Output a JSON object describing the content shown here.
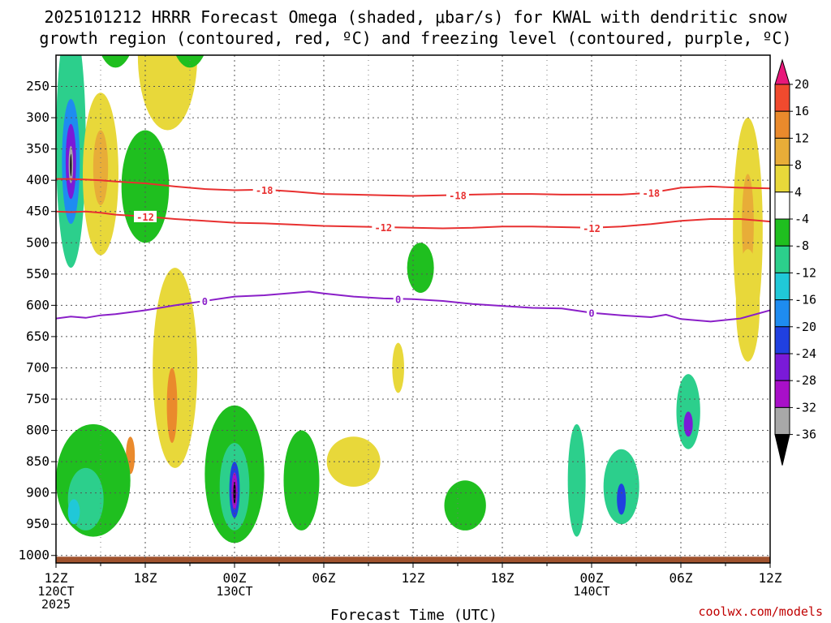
{
  "chart_data": {
    "type": "heatmap",
    "title_line1": "2025101212 HRRR Forecast Omega (shaded, μbar/s) for KWAL with dendritic snow",
    "title_line2": "growth region (contoured, red, ºC) and freezing level (contoured, purple, ºC)",
    "xlabel": "Forecast Time (UTC)",
    "credit": "coolwx.com/models",
    "x_hours": [
      0,
      6,
      12,
      18,
      24,
      30,
      36,
      42,
      48
    ],
    "x_tick_labels": [
      "12Z",
      "18Z",
      "00Z",
      "06Z",
      "12Z",
      "18Z",
      "00Z",
      "06Z",
      "12Z"
    ],
    "x_date_labels": [
      {
        "hour": 0,
        "text": "120CT"
      },
      {
        "hour": 0,
        "text": "2025",
        "row": 2
      },
      {
        "hour": 12,
        "text": "130CT"
      },
      {
        "hour": 36,
        "text": "140CT"
      }
    ],
    "y_levels": [
      250,
      300,
      350,
      400,
      450,
      500,
      550,
      600,
      650,
      700,
      750,
      800,
      850,
      900,
      950,
      1000
    ],
    "y_tick_labels": [
      "250",
      "300",
      "350",
      "400",
      "450",
      "500",
      "550",
      "600",
      "650",
      "700",
      "750",
      "800",
      "850",
      "900",
      "950",
      "1000"
    ],
    "ylim": [
      200,
      1012
    ],
    "xlim": [
      0,
      48
    ],
    "colorbar": {
      "labels": [
        "20",
        "16",
        "12",
        "8",
        "4",
        "-4",
        "-8",
        "-12",
        "-16",
        "-20",
        "-24",
        "-28",
        "-32",
        "-36"
      ],
      "bins": [
        {
          "low": 20,
          "high": 24,
          "color": "#e8187a"
        },
        {
          "low": 16,
          "high": 20,
          "color": "#f04a2e"
        },
        {
          "low": 12,
          "high": 16,
          "color": "#ea8a2c"
        },
        {
          "low": 8,
          "high": 12,
          "color": "#e8ad38"
        },
        {
          "low": 4,
          "high": 8,
          "color": "#e8d83a"
        },
        {
          "low": -4,
          "high": 4,
          "color": "#ffffff"
        },
        {
          "low": -8,
          "high": -4,
          "color": "#1fbf1f"
        },
        {
          "low": -12,
          "high": -8,
          "color": "#2ccf8c"
        },
        {
          "low": -16,
          "high": -12,
          "color": "#20c8d8"
        },
        {
          "low": -20,
          "high": -16,
          "color": "#1e8cf0"
        },
        {
          "low": -24,
          "high": -20,
          "color": "#2040e0"
        },
        {
          "low": -28,
          "high": -24,
          "color": "#7a1ad8"
        },
        {
          "low": -32,
          "high": -28,
          "color": "#a80fc8"
        },
        {
          "low": -36,
          "high": -32,
          "color": "#a8a8a8"
        },
        {
          "low": -40,
          "high": -36,
          "color": "#000000"
        }
      ]
    },
    "contours": [
      {
        "name": "contour-minus-18",
        "value": -18,
        "label": "-18",
        "color": "#e83030",
        "points": [
          [
            0,
            398
          ],
          [
            1,
            398
          ],
          [
            2,
            399
          ],
          [
            3,
            400
          ],
          [
            4,
            402
          ],
          [
            6,
            405
          ],
          [
            8,
            410
          ],
          [
            10,
            414
          ],
          [
            12,
            416
          ],
          [
            14,
            415
          ],
          [
            16,
            418
          ],
          [
            18,
            422
          ],
          [
            20,
            423
          ],
          [
            22,
            424
          ],
          [
            24,
            425
          ],
          [
            26,
            424
          ],
          [
            28,
            423
          ],
          [
            30,
            422
          ],
          [
            32,
            422
          ],
          [
            34,
            423
          ],
          [
            36,
            423
          ],
          [
            38,
            423
          ],
          [
            40,
            420
          ],
          [
            42,
            412
          ],
          [
            44,
            410
          ],
          [
            46,
            412
          ],
          [
            48,
            413
          ]
        ],
        "label_hours": [
          14,
          27,
          40
        ]
      },
      {
        "name": "contour-minus-12",
        "value": -12,
        "label": "-12",
        "color": "#e83030",
        "points": [
          [
            0,
            450
          ],
          [
            1,
            451
          ],
          [
            2,
            450
          ],
          [
            3,
            452
          ],
          [
            4,
            455
          ],
          [
            6,
            458
          ],
          [
            8,
            462
          ],
          [
            10,
            465
          ],
          [
            12,
            468
          ],
          [
            14,
            469
          ],
          [
            16,
            471
          ],
          [
            18,
            473
          ],
          [
            20,
            474
          ],
          [
            22,
            475
          ],
          [
            24,
            476
          ],
          [
            26,
            477
          ],
          [
            28,
            476
          ],
          [
            30,
            474
          ],
          [
            32,
            474
          ],
          [
            34,
            475
          ],
          [
            36,
            476
          ],
          [
            38,
            474
          ],
          [
            40,
            470
          ],
          [
            42,
            465
          ],
          [
            44,
            462
          ],
          [
            46,
            462
          ],
          [
            48,
            466
          ]
        ],
        "label_hours": [
          6,
          22,
          36
        ]
      },
      {
        "name": "contour-zero",
        "value": 0,
        "label": "0",
        "color": "#8a1fc8",
        "points": [
          [
            0,
            621
          ],
          [
            1,
            618
          ],
          [
            2,
            620
          ],
          [
            3,
            616
          ],
          [
            4,
            614
          ],
          [
            6,
            608
          ],
          [
            8,
            600
          ],
          [
            10,
            593
          ],
          [
            12,
            586
          ],
          [
            14,
            584
          ],
          [
            15,
            582
          ],
          [
            16,
            580
          ],
          [
            17,
            578
          ],
          [
            18,
            581
          ],
          [
            20,
            586
          ],
          [
            22,
            589
          ],
          [
            24,
            590
          ],
          [
            26,
            593
          ],
          [
            28,
            598
          ],
          [
            30,
            601
          ],
          [
            32,
            604
          ],
          [
            34,
            605
          ],
          [
            36,
            612
          ],
          [
            38,
            616
          ],
          [
            40,
            619
          ],
          [
            41,
            615
          ],
          [
            42,
            622
          ],
          [
            44,
            626
          ],
          [
            46,
            621
          ],
          [
            48,
            608
          ]
        ],
        "label_hours": [
          10,
          23,
          36
        ]
      }
    ],
    "omega_regions": [
      {
        "x": 1.0,
        "p": 340,
        "rx": 1.0,
        "rp": 200,
        "value": -10
      },
      {
        "x": 1.0,
        "p": 370,
        "rx": 0.6,
        "rp": 100,
        "value": -18
      },
      {
        "x": 1.0,
        "p": 370,
        "rx": 0.35,
        "rp": 60,
        "value": -26
      },
      {
        "x": 1.0,
        "p": 375,
        "rx": 0.15,
        "rp": 30,
        "value": -34
      },
      {
        "x": 1.0,
        "p": 376,
        "rx": 0.05,
        "rp": 18,
        "value": -38
      },
      {
        "x": 4.0,
        "p": 130,
        "rx": 1.5,
        "rp": 90,
        "value": -6
      },
      {
        "x": 3.0,
        "p": 390,
        "rx": 1.2,
        "rp": 130,
        "value": 6
      },
      {
        "x": 3.0,
        "p": 380,
        "rx": 0.5,
        "rp": 60,
        "value": 10
      },
      {
        "x": 6.0,
        "p": 410,
        "rx": 1.6,
        "rp": 90,
        "value": -6
      },
      {
        "x": 7.5,
        "p": 200,
        "rx": 2.0,
        "rp": 120,
        "value": 6
      },
      {
        "x": 9.0,
        "p": 130,
        "rx": 1.5,
        "rp": 90,
        "value": -6
      },
      {
        "x": 8.0,
        "p": 700,
        "rx": 1.5,
        "rp": 160,
        "value": 6
      },
      {
        "x": 5.0,
        "p": 840,
        "rx": 0.3,
        "rp": 30,
        "value": 14
      },
      {
        "x": 7.8,
        "p": 760,
        "rx": 0.35,
        "rp": 60,
        "value": 12
      },
      {
        "x": 2.5,
        "p": 880,
        "rx": 2.5,
        "rp": 90,
        "value": -8
      },
      {
        "x": 2.0,
        "p": 910,
        "rx": 1.2,
        "rp": 50,
        "value": -12
      },
      {
        "x": 1.2,
        "p": 930,
        "rx": 0.4,
        "rp": 20,
        "value": -16
      },
      {
        "x": 12.0,
        "p": 870,
        "rx": 2.0,
        "rp": 110,
        "value": -8
      },
      {
        "x": 12.0,
        "p": 890,
        "rx": 1.0,
        "rp": 70,
        "value": -12
      },
      {
        "x": 12.0,
        "p": 895,
        "rx": 0.35,
        "rp": 45,
        "value": -22
      },
      {
        "x": 12.0,
        "p": 897,
        "rx": 0.2,
        "rp": 30,
        "value": -30
      },
      {
        "x": 12.0,
        "p": 900,
        "rx": 0.08,
        "rp": 18,
        "value": -38
      },
      {
        "x": 16.5,
        "p": 880,
        "rx": 1.2,
        "rp": 80,
        "value": -6
      },
      {
        "x": 20.0,
        "p": 850,
        "rx": 1.8,
        "rp": 40,
        "value": 6
      },
      {
        "x": 24.5,
        "p": 540,
        "rx": 0.9,
        "rp": 40,
        "value": -8
      },
      {
        "x": 23.0,
        "p": 700,
        "rx": 0.4,
        "rp": 40,
        "value": 6
      },
      {
        "x": 27.5,
        "p": 920,
        "rx": 1.4,
        "rp": 40,
        "value": -6
      },
      {
        "x": 35.0,
        "p": 880,
        "rx": 0.6,
        "rp": 90,
        "value": -10
      },
      {
        "x": 38.0,
        "p": 890,
        "rx": 1.2,
        "rp": 60,
        "value": -10
      },
      {
        "x": 38.0,
        "p": 910,
        "rx": 0.3,
        "rp": 25,
        "value": -22
      },
      {
        "x": 42.5,
        "p": 770,
        "rx": 0.8,
        "rp": 60,
        "value": -12
      },
      {
        "x": 42.5,
        "p": 790,
        "rx": 0.3,
        "rp": 20,
        "value": -26
      },
      {
        "x": 46.5,
        "p": 480,
        "rx": 1.0,
        "rp": 180,
        "value": 6
      },
      {
        "x": 46.5,
        "p": 470,
        "rx": 0.4,
        "rp": 80,
        "value": 10
      },
      {
        "x": 46.5,
        "p": 600,
        "rx": 0.8,
        "rp": 90,
        "value": 6
      }
    ]
  }
}
